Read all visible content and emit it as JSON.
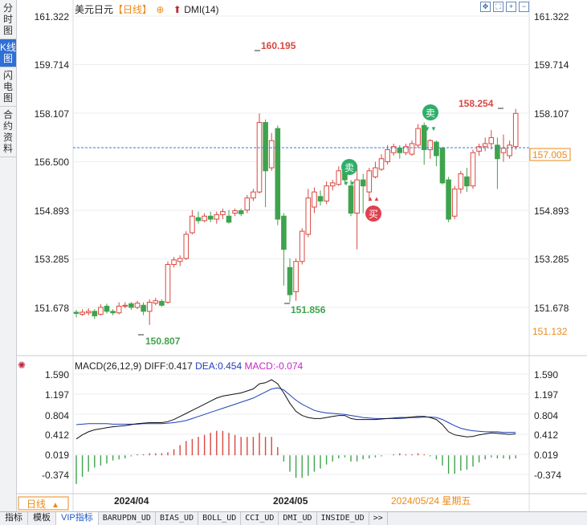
{
  "sidebar": {
    "tabs": [
      {
        "label": "分时图",
        "active": false
      },
      {
        "label": "K线图",
        "active": true
      },
      {
        "label": "闪电图",
        "active": false
      },
      {
        "label": "合约资料",
        "active": false
      }
    ]
  },
  "header": {
    "symbol": "美元日元",
    "period": "【日线】",
    "indicator": "DMI(14)",
    "icons": [
      "move-icon",
      "fit-icon",
      "zoom-in-icon",
      "zoom-out-icon"
    ]
  },
  "price_axis": {
    "ticks": [
      "161.322",
      "159.714",
      "158.107",
      "156.500",
      "154.893",
      "153.285",
      "151.678"
    ],
    "current_price": "157.005",
    "low_marker": "151.132"
  },
  "annotations": {
    "high_1": "160.195",
    "high_2": "158.254",
    "low_1": "150.807",
    "low_2": "151.856",
    "sell_label": "卖",
    "buy_label": "买"
  },
  "macd": {
    "title": "MACD(26,12,9)",
    "diff": "DIFF:0.417",
    "dea": "DEA:0.454",
    "macd": "MACD:-0.074",
    "ticks": [
      "1.590",
      "1.197",
      "0.804",
      "0.412",
      "0.019",
      "-0.374"
    ]
  },
  "time_axis": {
    "period_button": "日线",
    "labels": [
      "2024/04",
      "2024/05"
    ],
    "cursor_date": "2024/05/24 星期五"
  },
  "bottom_tabs": [
    {
      "label": "指标",
      "active": false
    },
    {
      "label": "模板",
      "active": false
    },
    {
      "label": "VIP指标",
      "active": true
    },
    {
      "label": "BARUPDN_UD",
      "active": false
    },
    {
      "label": "BIAS_UD",
      "active": false
    },
    {
      "label": "BOLL_UD",
      "active": false
    },
    {
      "label": "CCI_UD",
      "active": false
    },
    {
      "label": "DMI_UD",
      "active": false
    },
    {
      "label": "INSIDE_UD",
      "active": false
    },
    {
      "label": ">>",
      "active": false
    }
  ],
  "colors": {
    "up": "#d9473f",
    "down": "#3fa34d",
    "dea": "#1f3fb5",
    "diff": "#111111",
    "macd_label": "#c624c6",
    "accent": "#e98a1b",
    "active_tab": "#2f6fd6"
  },
  "chart_data": {
    "type": "candlestick",
    "price_range": [
      150.4,
      161.6
    ],
    "macd_range": [
      -0.55,
      1.72
    ],
    "candles": [
      [
        151.52,
        151.48,
        151.6,
        151.35
      ],
      [
        151.45,
        151.52,
        151.62,
        151.4
      ],
      [
        151.5,
        151.55,
        151.65,
        151.42
      ],
      [
        151.55,
        151.4,
        151.62,
        151.3
      ],
      [
        151.45,
        151.68,
        151.78,
        151.42
      ],
      [
        151.72,
        151.55,
        151.8,
        151.48
      ],
      [
        151.55,
        151.5,
        151.62,
        151.42
      ],
      [
        151.5,
        151.72,
        151.85,
        151.45
      ],
      [
        151.72,
        151.75,
        151.85,
        151.65
      ],
      [
        151.8,
        151.68,
        151.86,
        151.6
      ],
      [
        151.68,
        151.82,
        151.9,
        151.62
      ],
      [
        151.75,
        151.55,
        151.85,
        151.42
      ],
      [
        151.55,
        151.85,
        151.95,
        151.1
      ],
      [
        151.82,
        151.9,
        152.0,
        151.75
      ],
      [
        151.88,
        151.75,
        151.95,
        151.7
      ],
      [
        151.85,
        153.1,
        153.2,
        151.8
      ],
      [
        153.1,
        153.25,
        153.35,
        153.0
      ],
      [
        153.2,
        153.3,
        153.4,
        153.05
      ],
      [
        153.3,
        154.1,
        154.2,
        153.25
      ],
      [
        154.15,
        154.7,
        154.9,
        154.1
      ],
      [
        154.65,
        154.55,
        154.85,
        154.45
      ],
      [
        154.55,
        154.7,
        154.8,
        154.5
      ],
      [
        154.7,
        154.6,
        154.85,
        154.5
      ],
      [
        154.6,
        154.75,
        154.85,
        154.45
      ],
      [
        154.75,
        154.85,
        154.95,
        154.6
      ],
      [
        154.7,
        154.5,
        154.9,
        154.45
      ],
      [
        154.8,
        154.88,
        154.95,
        154.7
      ],
      [
        154.88,
        154.78,
        154.95,
        154.7
      ],
      [
        154.9,
        155.3,
        155.4,
        154.8
      ],
      [
        155.3,
        155.5,
        155.6,
        155.2
      ],
      [
        155.5,
        157.8,
        158.1,
        155.45
      ],
      [
        157.8,
        156.2,
        157.9,
        155.0
      ],
      [
        156.3,
        157.2,
        157.45,
        156.2
      ],
      [
        157.6,
        154.6,
        157.7,
        154.4
      ],
      [
        154.7,
        153.6,
        154.8,
        152.4
      ],
      [
        153.0,
        152.1,
        153.3,
        151.85
      ],
      [
        152.2,
        153.2,
        153.3,
        151.9
      ],
      [
        153.2,
        154.2,
        154.3,
        153.1
      ],
      [
        154.1,
        155.3,
        155.6,
        154.0
      ],
      [
        155.0,
        155.5,
        155.65,
        154.8
      ],
      [
        155.35,
        155.2,
        155.55,
        155.05
      ],
      [
        155.2,
        155.7,
        155.85,
        155.1
      ],
      [
        155.7,
        155.8,
        155.9,
        155.55
      ],
      [
        155.75,
        156.2,
        156.35,
        155.7
      ],
      [
        156.25,
        155.9,
        156.4,
        155.75
      ],
      [
        155.7,
        154.8,
        155.9,
        154.7
      ],
      [
        154.8,
        155.9,
        156.4,
        153.6
      ],
      [
        155.9,
        155.7,
        156.1,
        154.8
      ],
      [
        155.5,
        156.2,
        156.3,
        155.2
      ],
      [
        156.0,
        156.3,
        156.5,
        155.95
      ],
      [
        156.25,
        156.6,
        156.75,
        156.2
      ],
      [
        156.5,
        156.9,
        157.05,
        156.4
      ],
      [
        156.8,
        157.0,
        157.1,
        156.7
      ],
      [
        156.95,
        156.8,
        157.05,
        156.6
      ],
      [
        156.8,
        157.0,
        157.1,
        156.72
      ],
      [
        156.75,
        157.1,
        157.2,
        156.7
      ],
      [
        157.05,
        157.6,
        157.75,
        156.95
      ],
      [
        157.7,
        156.9,
        157.8,
        156.4
      ],
      [
        156.9,
        157.2,
        157.25,
        156.6
      ],
      [
        157.15,
        156.7,
        157.2,
        156.35
      ],
      [
        156.95,
        155.8,
        157.0,
        155.75
      ],
      [
        155.9,
        154.6,
        156.0,
        154.5
      ],
      [
        154.7,
        155.6,
        155.7,
        154.6
      ],
      [
        155.6,
        156.1,
        156.2,
        155.45
      ],
      [
        156.0,
        155.7,
        156.3,
        155.5
      ],
      [
        155.7,
        156.8,
        156.9,
        155.6
      ],
      [
        156.85,
        157.0,
        157.1,
        156.7
      ],
      [
        157.0,
        157.1,
        157.3,
        156.85
      ],
      [
        157.1,
        157.3,
        157.55,
        156.9
      ],
      [
        157.05,
        156.6,
        157.3,
        155.6
      ],
      [
        156.8,
        156.95,
        157.4,
        156.5
      ],
      [
        156.7,
        157.05,
        157.2,
        156.6
      ],
      [
        157.0,
        158.1,
        158.25,
        156.9
      ]
    ],
    "diff": [
      0.32,
      0.4,
      0.46,
      0.5,
      0.52,
      0.54,
      0.56,
      0.57,
      0.58,
      0.6,
      0.62,
      0.63,
      0.64,
      0.64,
      0.64,
      0.66,
      0.7,
      0.76,
      0.82,
      0.88,
      0.94,
      1.0,
      1.06,
      1.12,
      1.16,
      1.18,
      1.2,
      1.22,
      1.26,
      1.3,
      1.4,
      1.42,
      1.48,
      1.4,
      1.22,
      1.02,
      0.86,
      0.78,
      0.74,
      0.72,
      0.72,
      0.74,
      0.76,
      0.78,
      0.78,
      0.72,
      0.7,
      0.7,
      0.7,
      0.7,
      0.71,
      0.72,
      0.73,
      0.74,
      0.74,
      0.75,
      0.76,
      0.76,
      0.74,
      0.7,
      0.6,
      0.46,
      0.4,
      0.38,
      0.36,
      0.37,
      0.4,
      0.42,
      0.44,
      0.43,
      0.42,
      0.41,
      0.42
    ],
    "dea": [
      0.6,
      0.61,
      0.62,
      0.62,
      0.62,
      0.62,
      0.61,
      0.61,
      0.61,
      0.61,
      0.61,
      0.62,
      0.62,
      0.62,
      0.62,
      0.63,
      0.64,
      0.66,
      0.68,
      0.72,
      0.76,
      0.8,
      0.84,
      0.88,
      0.92,
      0.96,
      1.0,
      1.04,
      1.08,
      1.12,
      1.18,
      1.24,
      1.3,
      1.32,
      1.28,
      1.18,
      1.08,
      1.0,
      0.94,
      0.88,
      0.85,
      0.83,
      0.82,
      0.81,
      0.8,
      0.78,
      0.76,
      0.74,
      0.73,
      0.72,
      0.72,
      0.72,
      0.72,
      0.72,
      0.73,
      0.74,
      0.74,
      0.75,
      0.75,
      0.74,
      0.7,
      0.64,
      0.58,
      0.53,
      0.5,
      0.48,
      0.47,
      0.46,
      0.46,
      0.46,
      0.45,
      0.45,
      0.45
    ]
  }
}
